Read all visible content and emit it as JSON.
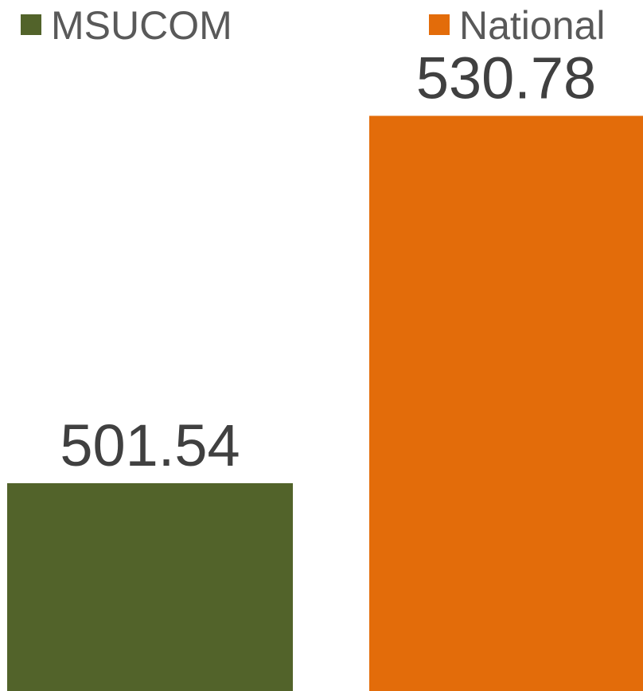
{
  "chart_data": {
    "type": "bar",
    "series": [
      {
        "name": "MSUCOM",
        "color": "#52632a",
        "values": [
          501.54
        ]
      },
      {
        "name": "National",
        "color": "#e36c0a",
        "values": [
          530.78
        ]
      }
    ],
    "ylim": [
      485,
      540
    ],
    "legend": "top"
  }
}
